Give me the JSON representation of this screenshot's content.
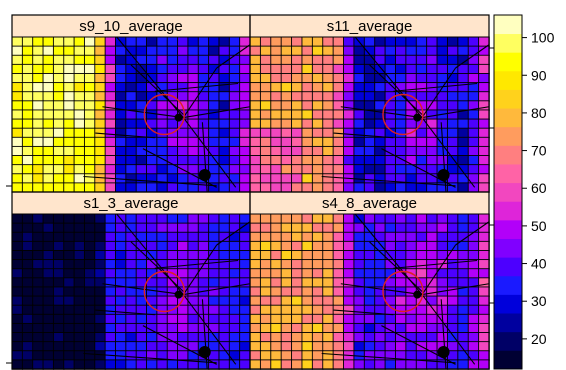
{
  "chart_data": {
    "type": "heatmap",
    "layout": "2x2 lattice levelplot with shared colorkey",
    "panels": [
      {
        "title": "s9_10_average",
        "pattern": "high-left-band",
        "approx_range": [
          15,
          105
        ]
      },
      {
        "title": "s11_average",
        "pattern": "magenta-left-band",
        "approx_range": [
          20,
          95
        ]
      },
      {
        "title": "s1_3_average",
        "pattern": "low-left-band",
        "approx_range": [
          10,
          65
        ]
      },
      {
        "title": "s4_8_average",
        "pattern": "peach-left-band",
        "approx_range": [
          20,
          85
        ]
      }
    ],
    "grid": {
      "cols": 23,
      "rows": 17
    },
    "colorkey": {
      "min": 12,
      "max": 106,
      "step": 5,
      "ticks": [
        "20",
        "30",
        "40",
        "50",
        "60",
        "70",
        "80",
        "90",
        "100"
      ],
      "tick_values": [
        20,
        30,
        40,
        50,
        60,
        70,
        80,
        90,
        100
      ],
      "colors": [
        "#000033",
        "#000066",
        "#00009f",
        "#0000db",
        "#1a1aff",
        "#4c00ff",
        "#8000ff",
        "#b200f9",
        "#de25d9",
        "#f247bf",
        "#ff63a6",
        "#ff7f80",
        "#ff9c5e",
        "#ffb93c",
        "#ffd21c",
        "#ffe800",
        "#ffff00",
        "#ffff60",
        "#ffffc0"
      ]
    },
    "overlay": {
      "description": "road network lines with a red circle highlight in each panel",
      "circle_color": "#dd2222"
    }
  }
}
